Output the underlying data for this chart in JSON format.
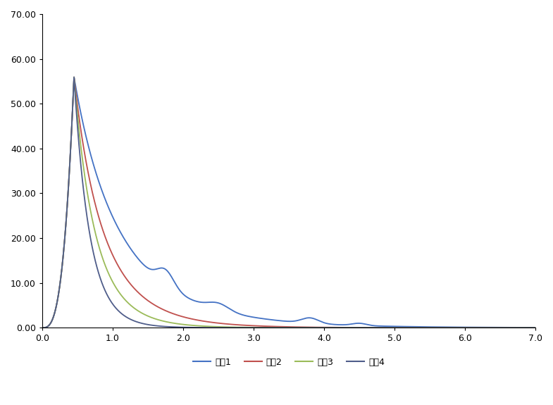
{
  "title": "",
  "xlabel": "",
  "ylabel": "",
  "xlim": [
    0.0,
    7.0
  ],
  "ylim": [
    0.0,
    70.0
  ],
  "xticks": [
    0.0,
    1.0,
    2.0,
    3.0,
    4.0,
    5.0,
    6.0,
    7.0
  ],
  "yticks": [
    0.0,
    10.0,
    20.0,
    30.0,
    40.0,
    50.0,
    60.0,
    70.0
  ],
  "legend_labels": [
    "계열1",
    "계열2",
    "계열3",
    "계열4"
  ],
  "series_colors": [
    "#4472C4",
    "#C0504D",
    "#9BBB59",
    "#4F5D8A"
  ],
  "background_color": "#FFFFFF",
  "peak_x": 0.45,
  "peak_y": 56.0
}
